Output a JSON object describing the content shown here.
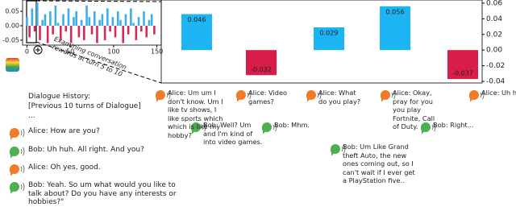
{
  "chart_data": [
    {
      "type": "bar",
      "x": [
        0,
        3,
        6,
        9,
        12,
        15,
        18,
        21,
        24,
        27,
        30,
        33,
        36,
        39,
        42,
        45,
        48,
        51,
        54,
        57,
        60,
        63,
        66,
        69,
        72,
        75,
        78,
        81,
        84,
        87,
        90,
        93,
        96,
        99,
        102,
        105,
        108,
        111,
        114,
        117,
        120,
        123,
        126,
        129,
        132,
        135,
        138,
        141,
        144,
        147
      ],
      "values": [
        0.03,
        -0.04,
        0.06,
        -0.02,
        0.08,
        -0.05,
        0.02,
        0.04,
        -0.06,
        0.05,
        -0.03,
        0.07,
        0.01,
        -0.05,
        0.04,
        -0.02,
        0.06,
        -0.06,
        0.03,
        0.05,
        -0.04,
        0.02,
        -0.05,
        0.07,
        0.03,
        -0.03,
        0.05,
        -0.06,
        0.02,
        0.04,
        -0.05,
        0.06,
        -0.02,
        0.03,
        -0.04,
        0.05,
        0.02,
        -0.06,
        0.04,
        -0.03,
        0.06,
        0.01,
        -0.05,
        0.03,
        -0.02,
        0.05,
        -0.04,
        0.02,
        0.04,
        -0.03
      ],
      "positive_color": "#3bb0e6",
      "negative_color": "#d42a55",
      "xlim": [
        -5,
        155
      ],
      "xticks": [
        0,
        50,
        100,
        150
      ],
      "ylim": [
        -0.067,
        0.089
      ],
      "yticks": [
        0.05,
        {
          "value": 0,
          "label": "0.00"
        },
        -0.05
      ]
    },
    {
      "type": "bar",
      "categories": [
        null,
        null,
        null,
        null,
        null
      ],
      "values": [
        0.046,
        -0.032,
        0.029,
        0.056,
        -0.037
      ],
      "positive_color": "#1cb4f2",
      "negative_color": "#d81e48",
      "ylim": [
        -0.042,
        0.064
      ],
      "yticks": [
        0.06,
        0.04,
        0.02,
        {
          "value": 0,
          "label": "0.00"
        },
        -0.02,
        -0.04
      ]
    }
  ],
  "annotation": [
    "Examining conversation",
    "rewards at turn 5 to 10"
  ],
  "history": {
    "title": "Dialogue History:",
    "lines": [
      "[Previous 10 turns of Dialogue]",
      "..."
    ]
  },
  "history_turns": [
    "Alice: How are you?",
    "Bob: Uh huh. All right. And you?",
    "Alice: Oh yes, good.",
    "Bob: Yeah. So um what would you like to talk about? Do you have any interests or hobbies?\""
  ],
  "turns": [
    "Alice: Um um I don't know. Um I like tv shows, I like sports which which is like my hobby?",
    "Bob: Well? Um and I'm kind of into video games.",
    "Alice: Video games?",
    "Bob: Mhm.",
    "Alice: What do you play?",
    "Bob: Um Like Grand theft Auto, the new ones coming out, so I can't wait if I ever get a PlayStation five..",
    "Alice: Okay, pray for you you play Fortnite, Call of Duty.",
    "Bob: Right...",
    "Alice: Uh huh"
  ]
}
